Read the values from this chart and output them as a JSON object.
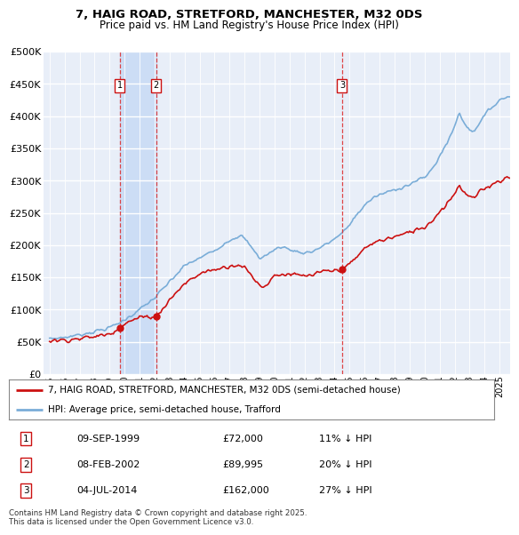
{
  "title1": "7, HAIG ROAD, STRETFORD, MANCHESTER, M32 0DS",
  "title2": "Price paid vs. HM Land Registry's House Price Index (HPI)",
  "hpi_color": "#7aadd8",
  "price_color": "#cc1111",
  "transactions": [
    {
      "num": 1,
      "date_num": 1999.69,
      "price": 72000,
      "label": "09-SEP-1999",
      "price_str": "£72,000",
      "hpi_pct": "11% ↓ HPI"
    },
    {
      "num": 2,
      "date_num": 2002.1,
      "price": 89995,
      "label": "08-FEB-2002",
      "price_str": "£89,995",
      "hpi_pct": "20% ↓ HPI"
    },
    {
      "num": 3,
      "date_num": 2014.5,
      "price": 162000,
      "label": "04-JUL-2014",
      "price_str": "£162,000",
      "hpi_pct": "27% ↓ HPI"
    }
  ],
  "legend_line1": "7, HAIG ROAD, STRETFORD, MANCHESTER, M32 0DS (semi-detached house)",
  "legend_line2": "HPI: Average price, semi-detached house, Trafford",
  "footnote": "Contains HM Land Registry data © Crown copyright and database right 2025.\nThis data is licensed under the Open Government Licence v3.0.",
  "ylim": [
    0,
    500000
  ],
  "yticks": [
    0,
    50000,
    100000,
    150000,
    200000,
    250000,
    300000,
    350000,
    400000,
    450000,
    500000
  ],
  "xlim_start": 1994.6,
  "xlim_end": 2025.7,
  "plot_bg": "#e8eef8",
  "shade_color": "#ccddf5"
}
